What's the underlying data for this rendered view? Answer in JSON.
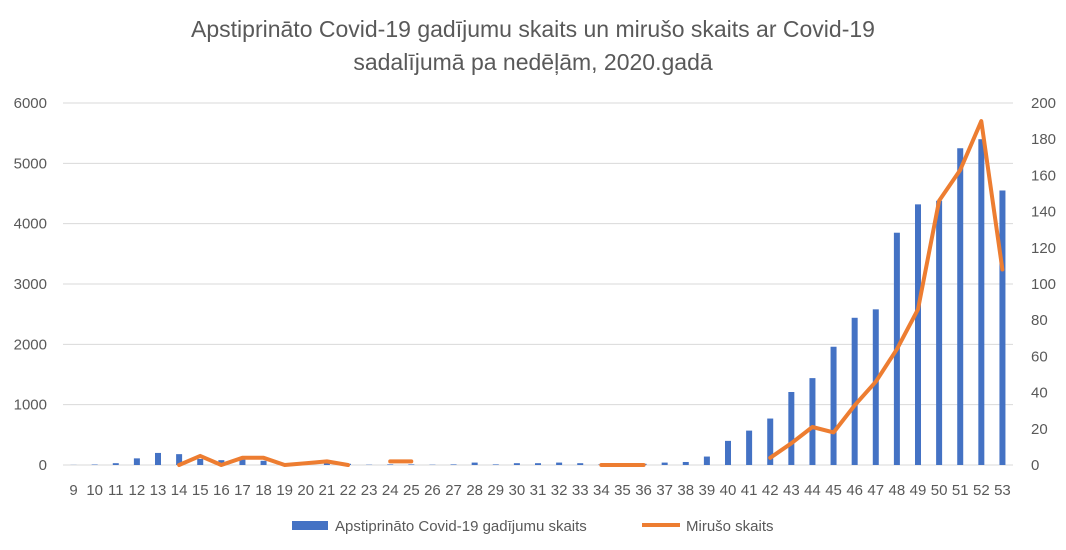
{
  "chart_data": {
    "type": "bar+line",
    "title_line1": "Apstiprināto Covid-19 gadījumu skaits un mirušo skaits ar Covid-19",
    "title_line2": "sadalījumā pa nedēļām, 2020.gadā",
    "categories": [
      "9",
      "10",
      "11",
      "12",
      "13",
      "14",
      "15",
      "16",
      "17",
      "18",
      "19",
      "20",
      "21",
      "22",
      "23",
      "24",
      "25",
      "26",
      "27",
      "28",
      "29",
      "30",
      "31",
      "32",
      "33",
      "34",
      "35",
      "36",
      "37",
      "38",
      "39",
      "40",
      "41",
      "42",
      "43",
      "44",
      "45",
      "46",
      "47",
      "48",
      "49",
      "50",
      "51",
      "52",
      "53"
    ],
    "y_left": {
      "min": 0,
      "max": 6000,
      "ticks": [
        0,
        1000,
        2000,
        3000,
        4000,
        5000,
        6000
      ]
    },
    "y_right": {
      "min": 0,
      "max": 200,
      "ticks": [
        0,
        20,
        40,
        60,
        80,
        100,
        120,
        140,
        160,
        180,
        200
      ]
    },
    "grid": true,
    "legend_position": "bottom",
    "series": [
      {
        "name": "Apstiprināto Covid-19 gadījumu skaits",
        "kind": "bar",
        "axis": "left",
        "color": "#4472C4",
        "values": [
          2,
          8,
          30,
          110,
          200,
          180,
          100,
          80,
          90,
          70,
          20,
          25,
          30,
          20,
          5,
          10,
          10,
          5,
          10,
          40,
          10,
          30,
          30,
          40,
          30,
          10,
          10,
          20,
          40,
          50,
          140,
          400,
          570,
          770,
          1210,
          1440,
          1960,
          2440,
          2580,
          3850,
          4320,
          4380,
          5250,
          5400,
          4550
        ]
      },
      {
        "name": "Mirušo skaits",
        "kind": "line",
        "axis": "right",
        "color": "#ED7D31",
        "segments": [
          {
            "start": "14",
            "values": [
              0,
              5,
              0,
              4,
              4,
              0,
              1,
              2,
              0
            ]
          },
          {
            "start": "24",
            "values": [
              2,
              2
            ]
          },
          {
            "start": "34",
            "values": [
              0,
              0,
              0
            ]
          },
          {
            "start": "42",
            "values": [
              4,
              12,
              21,
              18,
              33,
              46,
              64,
              86,
              146,
              163,
              190,
              108
            ]
          }
        ]
      }
    ]
  }
}
